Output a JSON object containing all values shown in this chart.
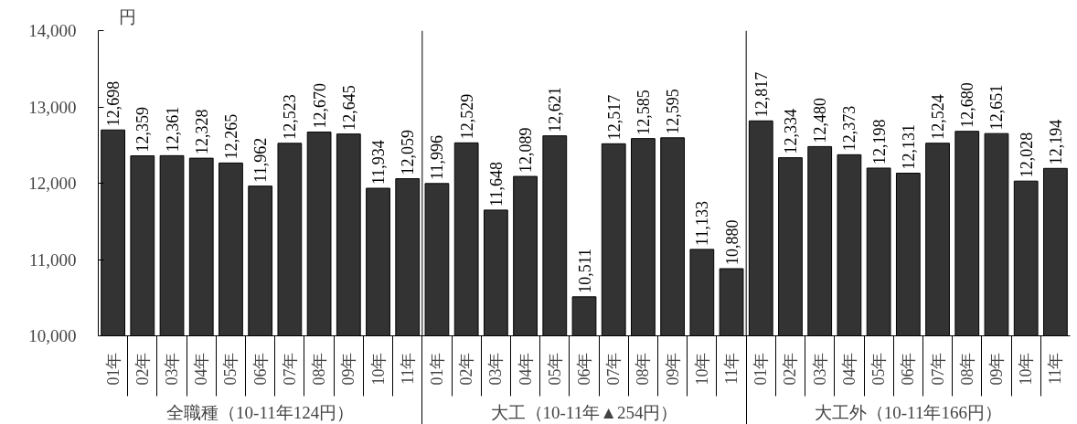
{
  "chart_data": {
    "type": "bar",
    "ylabel": "円",
    "categories": [
      "01年",
      "02年",
      "03年",
      "04年",
      "05年",
      "06年",
      "07年",
      "08年",
      "09年",
      "10年",
      "11年",
      "01年",
      "02年",
      "03年",
      "04年",
      "05年",
      "06年",
      "07年",
      "08年",
      "09年",
      "10年",
      "11年",
      "01年",
      "02年",
      "03年",
      "04年",
      "05年",
      "06年",
      "07年",
      "08年",
      "09年",
      "10年",
      "11年"
    ],
    "values": [
      12698,
      12359,
      12361,
      12328,
      12265,
      11962,
      12523,
      12670,
      12645,
      11934,
      12059,
      11996,
      12529,
      11648,
      12089,
      12621,
      10511,
      12517,
      12585,
      12595,
      11133,
      10880,
      12817,
      12334,
      12480,
      12373,
      12198,
      12131,
      12524,
      12680,
      12651,
      12028,
      12194
    ],
    "value_labels": [
      "12,698",
      "12,359",
      "12,361",
      "12,328",
      "12,265",
      "11,962",
      "12,523",
      "12,670",
      "12,645",
      "11,934",
      "12,059",
      "11,996",
      "12,529",
      "11,648",
      "12,089",
      "12,621",
      "10,511",
      "12,517",
      "12,585",
      "12,595",
      "11,133",
      "10,880",
      "12,817",
      "12,334",
      "12,480",
      "12,373",
      "12,198",
      "12,131",
      "12,524",
      "12,680",
      "12,651",
      "12,028",
      "12,194"
    ],
    "color": "#333333",
    "ylim": [
      10000,
      14000
    ],
    "yticks": [
      {
        "value": 10000,
        "label": "10,000"
      },
      {
        "value": 11000,
        "label": "11,000"
      },
      {
        "value": 12000,
        "label": "12,000"
      },
      {
        "value": 13000,
        "label": "13,000"
      },
      {
        "value": 14000,
        "label": "14,000"
      }
    ],
    "annotations": [
      "全職種（10-11年124円）",
      "大工（10-11年▲254円）",
      "大工外（10-11年166円）"
    ]
  }
}
